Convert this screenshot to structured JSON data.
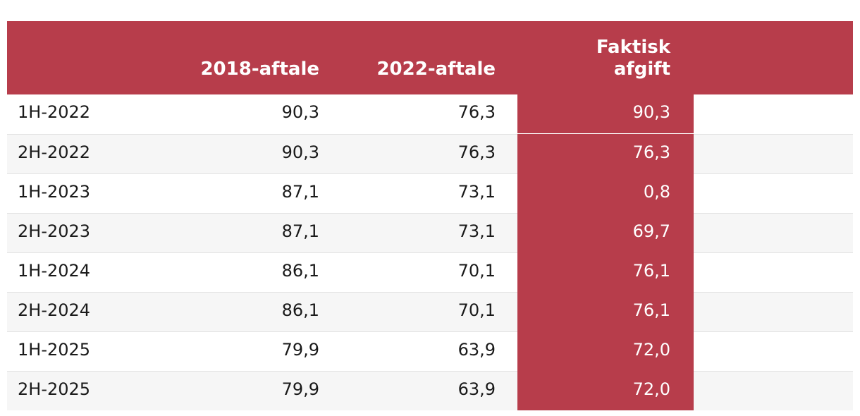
{
  "chart_data": {
    "type": "table",
    "columns": [
      "",
      "2018-aftale",
      "2022-aftale",
      "Faktisk afgift"
    ],
    "header": {
      "col1": "2018-aftale",
      "col2": "2022-aftale",
      "col3_line1": "Faktisk",
      "col3_line2": "afgift"
    },
    "rows": [
      {
        "period": "1H-2022",
        "aftale_2018": "90,3",
        "aftale_2022": "76,3",
        "faktisk": "90,3"
      },
      {
        "period": "2H-2022",
        "aftale_2018": "90,3",
        "aftale_2022": "76,3",
        "faktisk": "76,3"
      },
      {
        "period": "1H-2023",
        "aftale_2018": "87,1",
        "aftale_2022": "73,1",
        "faktisk": "0,8"
      },
      {
        "period": "2H-2023",
        "aftale_2018": "87,1",
        "aftale_2022": "73,1",
        "faktisk": "69,7"
      },
      {
        "period": "1H-2024",
        "aftale_2018": "86,1",
        "aftale_2022": "70,1",
        "faktisk": "76,1"
      },
      {
        "period": "2H-2024",
        "aftale_2018": "86,1",
        "aftale_2022": "70,1",
        "faktisk": "76,1"
      },
      {
        "period": "1H-2025",
        "aftale_2018": "79,9",
        "aftale_2022": "63,9",
        "faktisk": "72,0"
      },
      {
        "period": "2H-2025",
        "aftale_2018": "79,9",
        "aftale_2022": "63,9",
        "faktisk": "72,0"
      }
    ],
    "colors": {
      "accent": "#b73d4b",
      "stripe": "#f6f6f6",
      "divider": "#e2e2e2"
    }
  }
}
